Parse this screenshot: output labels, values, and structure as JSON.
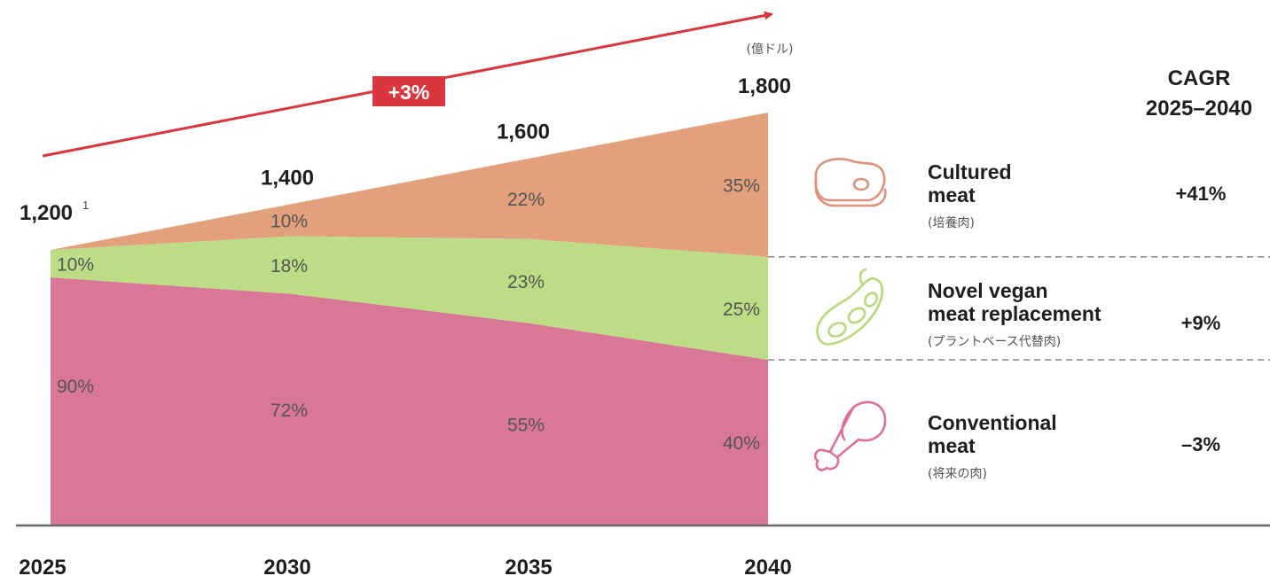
{
  "chart_data": {
    "type": "area",
    "stacked": true,
    "normalized_shares": true,
    "x": [
      "2025",
      "2030",
      "2035",
      "2040"
    ],
    "totals": [
      1200,
      1400,
      1600,
      1800
    ],
    "total_labels": [
      "1,200",
      "1,400",
      "1,600",
      "1,800"
    ],
    "footnote_marker": "1",
    "unit_label": "(億ドル)",
    "growth_badge": "+3%",
    "series": [
      {
        "name": "Conventional meat",
        "name_lines": [
          "Conventional",
          "meat"
        ],
        "name_jp": "(将来の肉)",
        "shares": [
          90,
          72,
          55,
          40
        ],
        "share_labels": [
          "90%",
          "72%",
          "55%",
          "40%"
        ],
        "cagr": "–3%",
        "color": "#d97896",
        "icon": "chicken-leg-icon"
      },
      {
        "name": "Novel vegan meat replacement",
        "name_lines": [
          "Novel vegan",
          "meat replacement"
        ],
        "name_jp": "(プラントベース代替肉)",
        "shares": [
          10,
          18,
          23,
          25
        ],
        "share_labels": [
          "10%",
          "18%",
          "23%",
          "25%"
        ],
        "cagr": "+9%",
        "color": "#bcdc85",
        "icon": "soybean-pod-icon"
      },
      {
        "name": "Cultured meat",
        "name_lines": [
          "Cultured",
          "meat"
        ],
        "name_jp": "(培養肉)",
        "shares": [
          0,
          10,
          22,
          35
        ],
        "share_labels": [
          "",
          "10%",
          "22%",
          "35%"
        ],
        "cagr": "+41%",
        "color": "#e3a07c",
        "icon": "steak-icon"
      }
    ],
    "cagr_header": [
      "CAGR",
      "2025–2040"
    ],
    "accent_color": "#d9363e"
  }
}
